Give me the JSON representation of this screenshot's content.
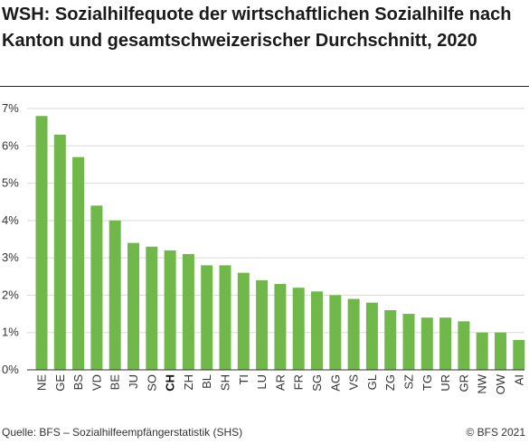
{
  "chart_data": {
    "type": "bar",
    "title": "WSH: Sozialhilfequote der wirtschaftlichen Sozialhilfe nach Kanton und gesamtschweizerischer Durchschnitt, 2020",
    "xlabel": "",
    "ylabel": "",
    "categories": [
      "NE",
      "GE",
      "BS",
      "VD",
      "BE",
      "JU",
      "SO",
      "CH",
      "ZH",
      "BL",
      "SH",
      "TI",
      "LU",
      "AR",
      "FR",
      "SG",
      "AG",
      "VS",
      "GL",
      "ZG",
      "SZ",
      "TG",
      "UR",
      "GR",
      "NW",
      "OW",
      "AI"
    ],
    "highlight_category": "CH",
    "values": [
      6.8,
      6.3,
      5.7,
      4.4,
      4.0,
      3.4,
      3.3,
      3.2,
      3.1,
      2.8,
      2.8,
      2.6,
      2.4,
      2.3,
      2.2,
      2.1,
      2.0,
      1.9,
      1.8,
      1.6,
      1.5,
      1.4,
      1.4,
      1.3,
      1.0,
      1.0,
      0.8
    ],
    "ylim": [
      0,
      7
    ],
    "yticks": [
      0,
      1,
      2,
      3,
      4,
      5,
      6,
      7
    ],
    "ytick_labels": [
      "0%",
      "1%",
      "2%",
      "3%",
      "4%",
      "5%",
      "6%",
      "7%"
    ],
    "grid": "horizontal",
    "bar_color": "#71b84a",
    "grid_color": "#d9d9d9"
  },
  "footer": {
    "source": "Quelle: BFS – Sozialhilfeempfängerstatistik (SHS)",
    "copyright": "© BFS 2021"
  }
}
